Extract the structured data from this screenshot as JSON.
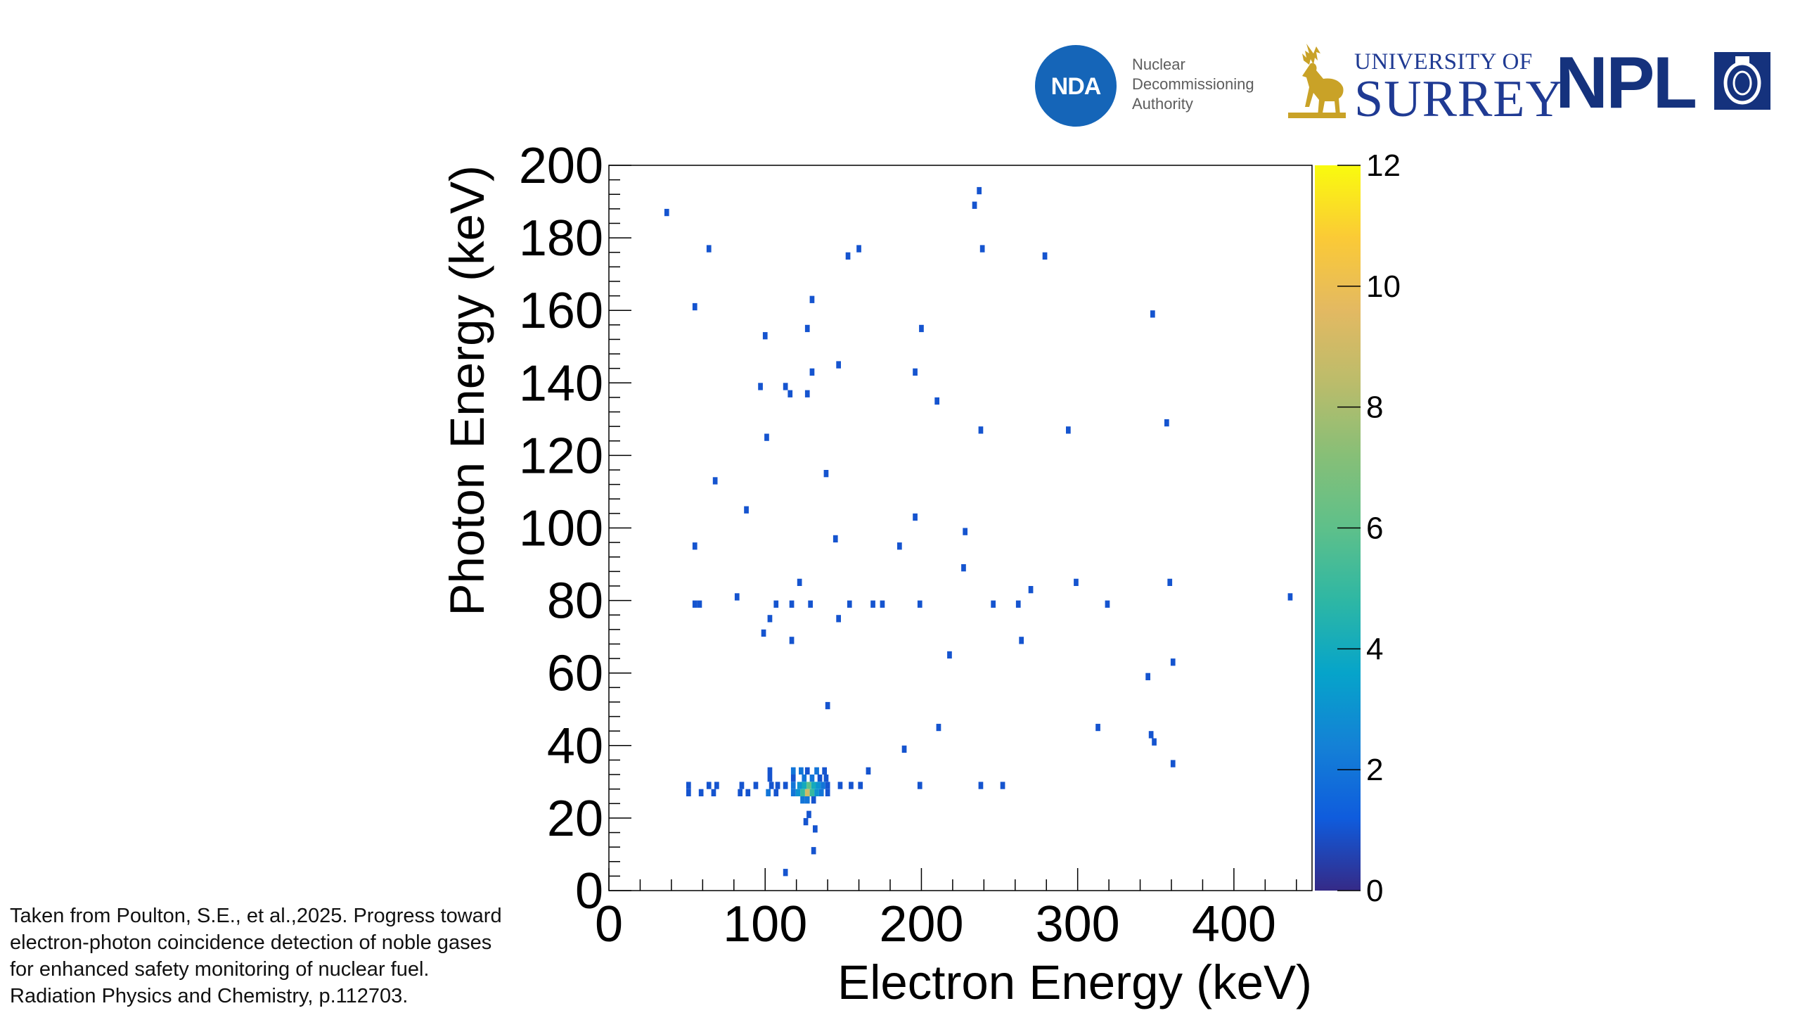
{
  "logos": {
    "nda_mark": "NDA",
    "nda_name_lines": [
      "Nuclear",
      "Decommissioning",
      "Authority"
    ],
    "surrey_top": "UNIVERSITY OF",
    "surrey_name": "SURREY",
    "npl": "NPL",
    "colors": {
      "nda_blue": "#1565b8",
      "surrey_gold": "#c9a227",
      "surrey_navy": "#1f3a93",
      "npl_navy": "#15327d"
    }
  },
  "citation_lines": [
    "Taken from Poulton, S.E., et al.,2025. Progress toward",
    "electron-photon coincidence detection of noble gases",
    "for enhanced safety monitoring of nuclear fuel.",
    "Radiation Physics and Chemistry, p.112703."
  ],
  "chart_data": {
    "type": "heatmap",
    "xlabel": "Electron Energy (keV)",
    "ylabel": "Photon Energy (keV)",
    "xlim": [
      0,
      450
    ],
    "ylim": [
      0,
      200
    ],
    "xticks": [
      0,
      100,
      200,
      300,
      400
    ],
    "yticks": [
      0,
      20,
      40,
      60,
      80,
      100,
      120,
      140,
      160,
      180,
      200
    ],
    "colorbar": {
      "range": [
        0,
        12
      ],
      "ticks": [
        0,
        2,
        4,
        6,
        8,
        10,
        12
      ],
      "colormap": "parula"
    },
    "grid": false,
    "bins": [
      [
        37,
        187,
        1
      ],
      [
        64,
        177,
        1
      ],
      [
        153,
        175,
        1
      ],
      [
        160,
        177,
        1
      ],
      [
        234,
        189,
        1
      ],
      [
        237,
        193,
        1
      ],
      [
        239,
        177,
        1
      ],
      [
        279,
        175,
        1
      ],
      [
        55,
        161,
        1
      ],
      [
        130,
        163,
        1
      ],
      [
        100,
        153,
        1
      ],
      [
        127,
        155,
        1
      ],
      [
        200,
        155,
        1
      ],
      [
        348,
        159,
        1
      ],
      [
        97,
        139,
        1
      ],
      [
        113,
        139,
        1
      ],
      [
        116,
        137,
        1
      ],
      [
        127,
        137,
        1
      ],
      [
        130,
        143,
        1
      ],
      [
        147,
        145,
        1
      ],
      [
        196,
        143,
        1
      ],
      [
        210,
        135,
        1
      ],
      [
        101,
        125,
        1
      ],
      [
        238,
        127,
        1
      ],
      [
        294,
        127,
        1
      ],
      [
        357,
        129,
        1
      ],
      [
        68,
        113,
        1
      ],
      [
        139,
        115,
        1
      ],
      [
        88,
        105,
        1
      ],
      [
        196,
        103,
        1
      ],
      [
        55,
        95,
        1
      ],
      [
        145,
        97,
        1
      ],
      [
        186,
        95,
        1
      ],
      [
        228,
        99,
        1
      ],
      [
        227,
        89,
        1
      ],
      [
        122,
        85,
        1
      ],
      [
        299,
        85,
        1
      ],
      [
        359,
        85,
        1
      ],
      [
        270,
        83,
        1
      ],
      [
        436,
        81,
        1
      ],
      [
        82,
        81,
        1
      ],
      [
        55,
        79,
        1
      ],
      [
        58,
        79,
        1
      ],
      [
        107,
        79,
        1
      ],
      [
        117,
        79,
        1
      ],
      [
        129,
        79,
        1
      ],
      [
        154,
        79,
        1
      ],
      [
        169,
        79,
        1
      ],
      [
        175,
        79,
        1
      ],
      [
        199,
        79,
        1
      ],
      [
        246,
        79,
        1
      ],
      [
        262,
        79,
        1
      ],
      [
        319,
        79,
        1
      ],
      [
        103,
        75,
        1
      ],
      [
        147,
        75,
        1
      ],
      [
        99,
        71,
        1
      ],
      [
        117,
        69,
        1
      ],
      [
        264,
        69,
        1
      ],
      [
        218,
        65,
        1
      ],
      [
        361,
        63,
        1
      ],
      [
        345,
        59,
        1
      ],
      [
        140,
        51,
        1
      ],
      [
        211,
        45,
        1
      ],
      [
        313,
        45,
        1
      ],
      [
        347,
        43,
        1
      ],
      [
        349,
        41,
        1
      ],
      [
        189,
        39,
        1
      ],
      [
        361,
        35,
        1
      ],
      [
        103,
        33,
        1
      ],
      [
        118,
        33,
        2
      ],
      [
        123,
        33,
        2
      ],
      [
        127,
        33,
        1
      ],
      [
        133,
        33,
        2
      ],
      [
        138,
        33,
        1
      ],
      [
        166,
        33,
        1
      ],
      [
        103,
        31,
        1
      ],
      [
        118,
        31,
        1
      ],
      [
        125,
        31,
        2
      ],
      [
        130,
        31,
        2
      ],
      [
        135,
        31,
        1
      ],
      [
        139,
        31,
        1
      ],
      [
        51,
        29,
        1
      ],
      [
        64,
        29,
        1
      ],
      [
        69,
        29,
        1
      ],
      [
        85,
        29,
        1
      ],
      [
        94,
        29,
        1
      ],
      [
        104,
        29,
        1
      ],
      [
        108,
        29,
        1
      ],
      [
        113,
        29,
        1
      ],
      [
        118,
        29,
        2
      ],
      [
        122,
        29,
        3
      ],
      [
        125,
        29,
        4
      ],
      [
        128,
        29,
        6
      ],
      [
        131,
        29,
        4
      ],
      [
        134,
        29,
        3
      ],
      [
        137,
        29,
        2
      ],
      [
        140,
        29,
        1
      ],
      [
        148,
        29,
        1
      ],
      [
        155,
        29,
        1
      ],
      [
        161,
        29,
        1
      ],
      [
        199,
        29,
        1
      ],
      [
        238,
        29,
        1
      ],
      [
        252,
        29,
        1
      ],
      [
        51,
        27,
        1
      ],
      [
        59,
        27,
        1
      ],
      [
        67,
        27,
        1
      ],
      [
        84,
        27,
        1
      ],
      [
        89,
        27,
        1
      ],
      [
        102,
        27,
        2
      ],
      [
        107,
        27,
        1
      ],
      [
        118,
        27,
        2
      ],
      [
        121,
        27,
        3
      ],
      [
        124,
        27,
        5
      ],
      [
        127,
        27,
        9
      ],
      [
        130,
        27,
        5
      ],
      [
        133,
        27,
        3
      ],
      [
        136,
        27,
        2
      ],
      [
        140,
        27,
        1
      ],
      [
        124,
        25,
        2
      ],
      [
        127,
        25,
        2
      ],
      [
        131,
        25,
        1
      ],
      [
        128,
        21,
        1
      ],
      [
        126,
        19,
        1
      ],
      [
        132,
        17,
        1
      ],
      [
        131,
        11,
        1
      ],
      [
        113,
        5,
        1
      ]
    ]
  }
}
